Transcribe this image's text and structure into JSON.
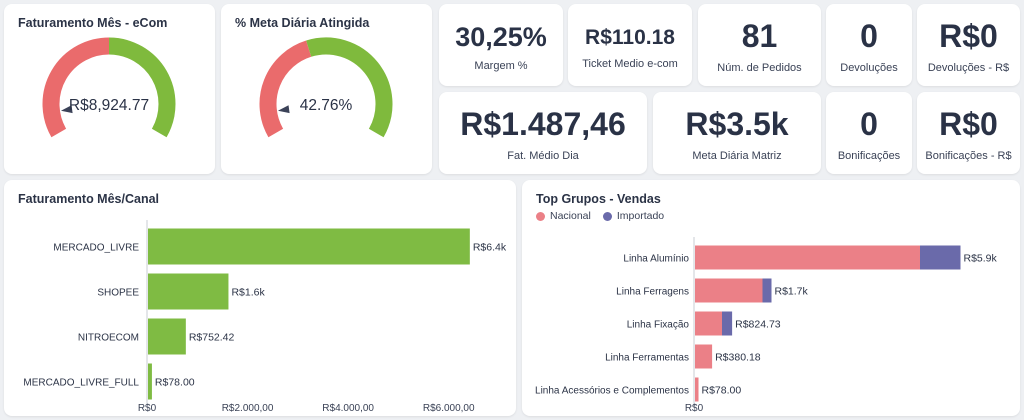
{
  "colors": {
    "red": "#ea6b6c",
    "green": "#7fba3d",
    "pink": "#eb8087",
    "purple": "#6a6aaa",
    "bar_green": "#7fbb43"
  },
  "gauges": [
    {
      "title": "Faturamento Mês - eCom",
      "value_text": "R$8,924.77",
      "fill_fraction": 0.5
    },
    {
      "title": "% Meta Diária Atingida",
      "value_text": "42.76%",
      "fill_fraction": 0.4276
    }
  ],
  "kpis": {
    "margem": {
      "value": "30,25%",
      "label": "Margem %"
    },
    "ticket": {
      "value": "R$110.18",
      "label": "Ticket Medio e-com"
    },
    "pedidos": {
      "value": "81",
      "label": "Núm. de Pedidos"
    },
    "devolucoes": {
      "value": "0",
      "label": "Devoluções"
    },
    "devolucoes_rs": {
      "value": "R$0",
      "label": "Devoluções - R$"
    },
    "fat_medio": {
      "value": "R$1.487,46",
      "label": "Fat. Médio Dia"
    },
    "meta_diaria": {
      "value": "R$3.5k",
      "label": "Meta Diária Matriz"
    },
    "bonificacoes": {
      "value": "0",
      "label": "Bonificações"
    },
    "bonificacoes_rs": {
      "value": "R$0",
      "label": "Bonificações - R$"
    }
  },
  "channel_chart": {
    "title": "Faturamento Mês/Canal"
  },
  "groups_chart": {
    "title": "Top Grupos - Vendas",
    "legend": [
      "Nacional",
      "Importado"
    ]
  },
  "chart_data": [
    {
      "type": "bar",
      "orientation": "horizontal",
      "title": "Faturamento Mês/Canal",
      "categories": [
        "MERCADO_LIVRE",
        "SHOPEE",
        "NITROECOM",
        "MERCADO_LIVRE_FULL"
      ],
      "values": [
        6400,
        1600,
        752.42,
        78.0
      ],
      "data_labels": [
        "R$6.4k",
        "R$1.6k",
        "R$752.42",
        "R$78.00"
      ],
      "xlim": [
        0,
        7000
      ],
      "x_ticks": [
        0,
        2000,
        4000,
        6000
      ],
      "x_tick_labels": [
        "R$0",
        "R$2.000,00",
        "R$4.000,00",
        "R$6.000,00"
      ]
    },
    {
      "type": "bar",
      "orientation": "horizontal",
      "stacked": true,
      "title": "Top Grupos - Vendas",
      "categories": [
        "Linha Alumínio",
        "Linha Ferragens",
        "Linha Fixação",
        "Linha Ferramentas",
        "Linha Acessórios e Complementos"
      ],
      "series": [
        {
          "name": "Nacional",
          "values": [
            5000,
            1500,
            600,
            380.18,
            78.0
          ]
        },
        {
          "name": "Importado",
          "values": [
            900,
            200,
            224.73,
            0,
            0
          ]
        }
      ],
      "data_labels": [
        "R$5.9k",
        "R$1.7k",
        "R$824.73",
        "R$380.18",
        "R$78.00"
      ],
      "xlim": [
        0,
        7000
      ],
      "x_ticks": [
        0
      ],
      "x_tick_labels": [
        "R$0"
      ],
      "legend": "top-left"
    }
  ]
}
